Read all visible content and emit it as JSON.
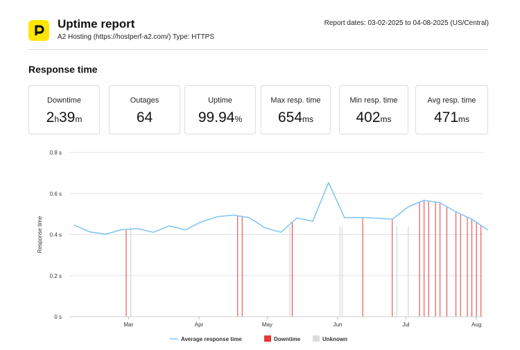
{
  "header": {
    "title": "Uptime report",
    "subtitle": "A2 Hosting (https://hostperf-a2.com/) Type: HTTPS",
    "report_dates": "Report dates: 03-02-2025 to 04-08-2025 (US/Central)",
    "logo_icon": "p-logo-icon"
  },
  "section": {
    "title": "Response time"
  },
  "cards": {
    "downtime": {
      "label": "Downtime",
      "h_val": "2",
      "h_unit": "h",
      "m_val": "39",
      "m_unit": "m"
    },
    "outages": {
      "label": "Outages",
      "value": "64"
    },
    "uptime": {
      "label": "Uptime",
      "value": "99.94",
      "unit": "%"
    },
    "max_resp": {
      "label": "Max resp. time",
      "value": "654",
      "unit": "ms"
    },
    "min_resp": {
      "label": "Min resp. time",
      "value": "402",
      "unit": "ms"
    },
    "avg_resp": {
      "label": "Avg resp. time",
      "value": "471",
      "unit": "ms"
    }
  },
  "colors": {
    "line": "#7cc4f4",
    "downtime": "#e53935",
    "unknown": "#dcdcdc",
    "grid": "#e3e3e3",
    "logo": "#ffe600"
  },
  "chart_data": {
    "type": "line",
    "ylabel": "Response time",
    "ylim": [
      0,
      0.8
    ],
    "y_ticks": [
      {
        "value": 0,
        "label": "0 s"
      },
      {
        "value": 0.2,
        "label": "0.2 s"
      },
      {
        "value": 0.4,
        "label": "0.4 s"
      },
      {
        "value": 0.6,
        "label": "0.6 s"
      },
      {
        "value": 0.8,
        "label": "0.8 s"
      }
    ],
    "xlim": [
      "2025-02-03",
      "2025-08-04"
    ],
    "x_ticks": [
      {
        "date": "2025-03-01",
        "label": "Mar"
      },
      {
        "date": "2025-04-01",
        "label": "Apr"
      },
      {
        "date": "2025-05-01",
        "label": "May"
      },
      {
        "date": "2025-06-01",
        "label": "Jun"
      },
      {
        "date": "2025-07-01",
        "label": "Jul"
      },
      {
        "date": "2025-08-01",
        "label": "Aug"
      }
    ],
    "series": [
      {
        "name": "Average response time",
        "x": [
          "2025-02-05",
          "2025-02-12",
          "2025-02-19",
          "2025-02-26",
          "2025-03-05",
          "2025-03-12",
          "2025-03-19",
          "2025-03-26",
          "2025-04-02",
          "2025-04-09",
          "2025-04-16",
          "2025-04-23",
          "2025-04-30",
          "2025-05-07",
          "2025-05-14",
          "2025-05-21",
          "2025-05-28",
          "2025-06-04",
          "2025-06-11",
          "2025-06-18",
          "2025-06-25",
          "2025-07-02",
          "2025-07-09",
          "2025-07-16",
          "2025-07-23",
          "2025-07-30",
          "2025-08-06"
        ],
        "y": [
          0.447,
          0.413,
          0.402,
          0.424,
          0.429,
          0.411,
          0.443,
          0.423,
          0.462,
          0.487,
          0.495,
          0.483,
          0.433,
          0.411,
          0.481,
          0.465,
          0.654,
          0.482,
          0.483,
          0.48,
          0.475,
          0.535,
          0.567,
          0.555,
          0.511,
          0.475,
          0.422
        ]
      }
    ],
    "downtime_dates": [
      "2025-02-28",
      "2025-04-18",
      "2025-04-20",
      "2025-05-12",
      "2025-06-12",
      "2025-06-25",
      "2025-07-07",
      "2025-07-09",
      "2025-07-11",
      "2025-07-14",
      "2025-07-16",
      "2025-07-19",
      "2025-07-23",
      "2025-07-25",
      "2025-07-28",
      "2025-07-30",
      "2025-08-01",
      "2025-08-03"
    ],
    "unknown_dates": [
      "2025-03-02",
      "2025-05-11",
      "2025-06-02",
      "2025-06-03",
      "2025-06-27",
      "2025-07-02"
    ],
    "legend": [
      {
        "label": "Average response time",
        "kind": "line"
      },
      {
        "label": "Downtime",
        "kind": "downtime"
      },
      {
        "label": "Unknown",
        "kind": "unknown"
      }
    ],
    "legend_position": "bottom",
    "grid": true
  }
}
